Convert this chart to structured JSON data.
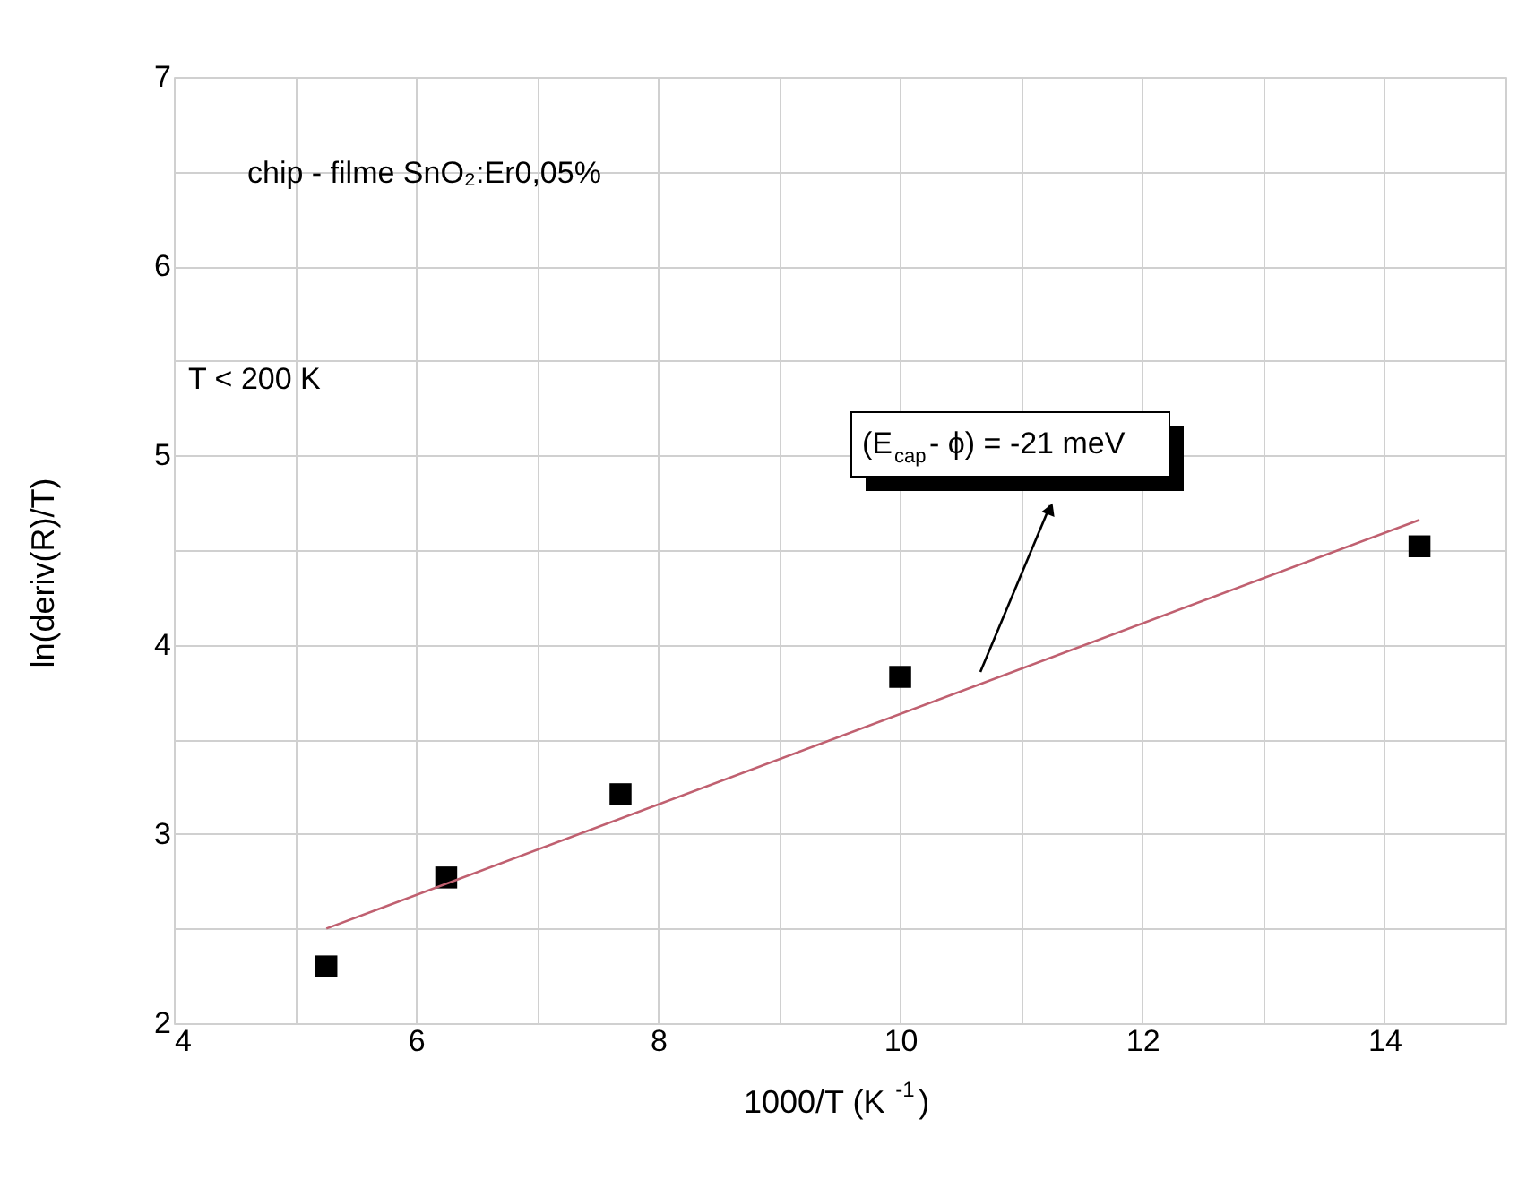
{
  "chart_data": {
    "type": "scatter",
    "xlabel": "1000/T (K$^{-1}$)",
    "ylabel": "ln(deriv(R)/T)",
    "series": [
      {
        "color": "#000000",
        "marker": "square",
        "x": [
          5.26,
          6.25,
          7.69,
          10.0,
          14.29
        ],
        "values": [
          2.3,
          2.77,
          3.21,
          3.83,
          4.52
        ]
      },
      {
        "type": "line",
        "color": "#c06070",
        "marker": "none",
        "line_style": "solid",
        "x": [
          5.26,
          14.29
        ],
        "values": [
          2.5,
          4.66
        ]
      }
    ],
    "xlim": [
      4,
      15
    ],
    "ylim": [
      2,
      7
    ],
    "xticks": [
      4,
      {
        "value": 5,
        "label": null
      },
      6,
      {
        "value": 7,
        "label": null
      },
      8,
      {
        "value": 9,
        "label": null
      },
      10,
      {
        "value": 11,
        "label": null
      },
      12,
      {
        "value": 13,
        "label": null
      },
      14,
      {
        "value": 15,
        "label": null
      }
    ],
    "yticks": [
      2,
      {
        "value": 2.5,
        "label": null
      },
      3,
      {
        "value": 3.5,
        "label": null
      },
      4,
      {
        "value": 4.5,
        "label": null
      },
      5,
      {
        "value": 5.5,
        "label": null
      },
      6,
      {
        "value": 6.5,
        "label": null
      },
      7
    ],
    "grid": true,
    "annotations": [
      "chip - filme SnO₂:Er0,05%",
      "T < 200 K",
      "(E$_{cap}$- ϕ) = -21 meV"
    ]
  }
}
